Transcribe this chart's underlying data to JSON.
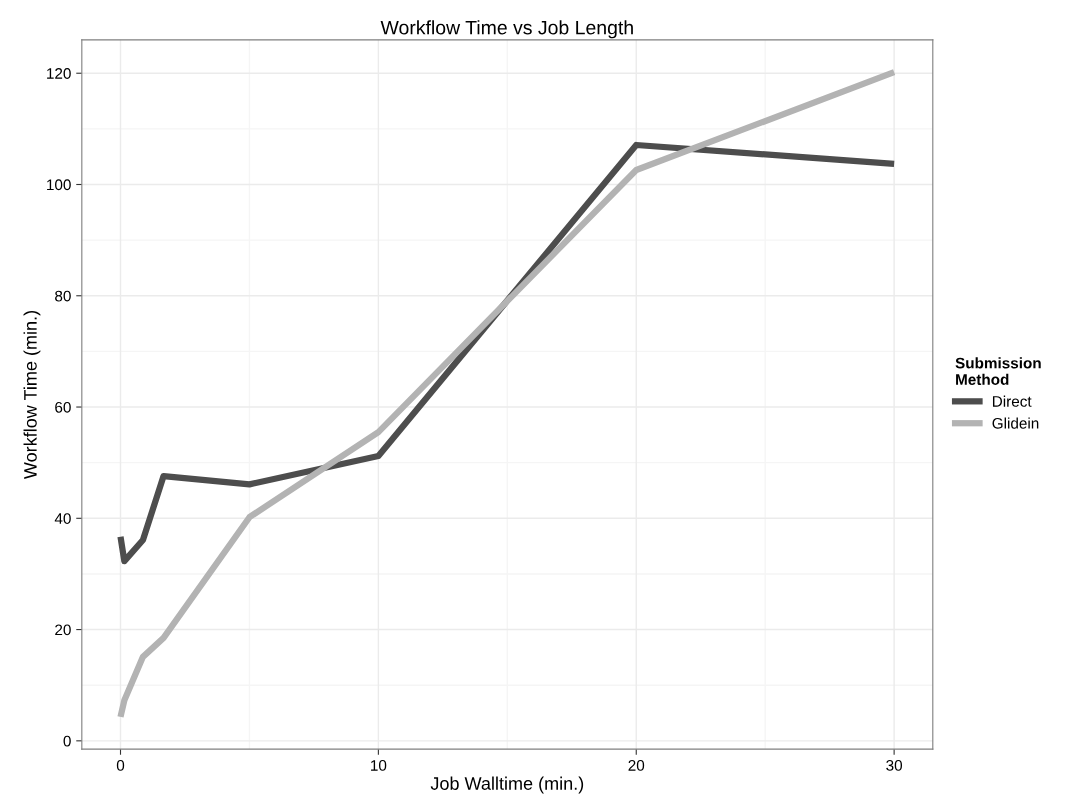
{
  "chart_data": {
    "type": "line",
    "title": "Workflow Time vs Job Length",
    "xlabel": "Job Walltime (min.)",
    "ylabel": "Workflow Time (min.)",
    "legend_title": "Submission\nMethod",
    "series": [
      {
        "name": "Direct",
        "color": "#4d4d4d",
        "x": [
          0.0,
          0.15,
          0.87,
          1.67,
          5,
          10,
          20,
          30
        ],
        "values": [
          36.7,
          32.3,
          36.1,
          47.6,
          46.1,
          51.2,
          107.1,
          103.7
        ]
      },
      {
        "name": "Glidein",
        "color": "#b3b3b3",
        "x": [
          0.0,
          0.15,
          0.87,
          1.67,
          5,
          10,
          20,
          30
        ],
        "values": [
          4.3,
          7.3,
          15.1,
          18.5,
          40.2,
          55.5,
          102.6,
          120.2
        ]
      }
    ],
    "xlim": [
      -1.5,
      31.5
    ],
    "ylim": [
      -1.5,
      126
    ],
    "xticks": [
      0,
      10,
      20,
      30
    ],
    "yticks": [
      0,
      20,
      40,
      60,
      80,
      100,
      120
    ],
    "grid": true,
    "legend": "right",
    "line_style": "solid",
    "marker": "none"
  }
}
